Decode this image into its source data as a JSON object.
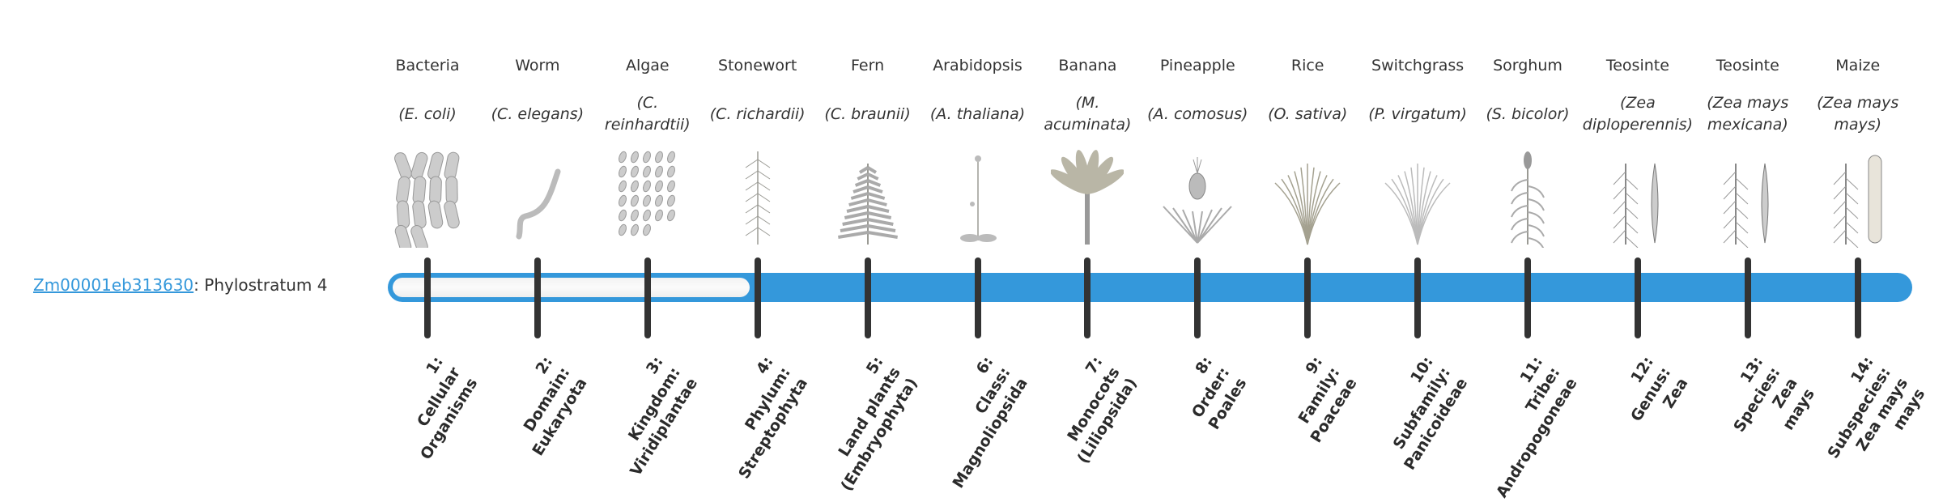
{
  "gene": {
    "id": "Zm00001eb313630",
    "suffix": ": Phylostratum 4",
    "phylostratum": 4
  },
  "colors": {
    "bar": "#3498db",
    "tick": "#333333",
    "link": "#3498db"
  },
  "organisms": [
    {
      "name": "Bacteria",
      "species": "(E. coli)",
      "icon": "bacteria-icon"
    },
    {
      "name": "Worm",
      "species": "(C. elegans)",
      "icon": "worm-icon"
    },
    {
      "name": "Algae",
      "species": "(C. reinhardtii)",
      "icon": "algae-icon"
    },
    {
      "name": "Stonewort",
      "species": "(C. richardii)",
      "icon": "stonewort-icon"
    },
    {
      "name": "Fern",
      "species": "(C. braunii)",
      "icon": "fern-icon"
    },
    {
      "name": "Arabidopsis",
      "species": "(A. thaliana)",
      "icon": "arabidopsis-icon"
    },
    {
      "name": "Banana",
      "species": "(M. acuminata)",
      "icon": "banana-icon"
    },
    {
      "name": "Pineapple",
      "species": "(A. comosus)",
      "icon": "pineapple-icon"
    },
    {
      "name": "Rice",
      "species": "(O. sativa)",
      "icon": "rice-icon"
    },
    {
      "name": "Switchgrass",
      "species": "(P. virgatum)",
      "icon": "switchgrass-icon"
    },
    {
      "name": "Sorghum",
      "species": "(S. bicolor)",
      "icon": "sorghum-icon"
    },
    {
      "name": "Teosinte",
      "species": "(Zea diploperennis)",
      "icon": "teosinte-icon"
    },
    {
      "name": "Teosinte",
      "species": "(Zea mays mexicana)",
      "icon": "teosinte-icon"
    },
    {
      "name": "Maize",
      "species": "(Zea mays mays)",
      "icon": "maize-icon"
    }
  ],
  "strata": [
    {
      "lines": [
        "1:",
        "Cellular",
        "Organisms"
      ]
    },
    {
      "lines": [
        "2:",
        "Domain:",
        "Eukaryota"
      ]
    },
    {
      "lines": [
        "3:",
        "Kingdom:",
        "Viridiplantae"
      ]
    },
    {
      "lines": [
        "4:",
        "Phylum:",
        "Streptophyta"
      ]
    },
    {
      "lines": [
        "5:",
        "Land plants",
        "(Embryophyta)"
      ]
    },
    {
      "lines": [
        "6:",
        "Class:",
        "Magnoliopsida"
      ]
    },
    {
      "lines": [
        "7:",
        "Monocots",
        "(Liliopsida)"
      ]
    },
    {
      "lines": [
        "8:",
        "Order:",
        "Poales"
      ]
    },
    {
      "lines": [
        "9:",
        "Family:",
        "Poaceae"
      ]
    },
    {
      "lines": [
        "10:",
        "Subfamily:",
        "Panicoideae"
      ]
    },
    {
      "lines": [
        "11:",
        "Tribe:",
        "Andropogoneae"
      ]
    },
    {
      "lines": [
        "12:",
        "Genus:",
        "Zea"
      ]
    },
    {
      "lines": [
        "13:",
        "Species:",
        "Zea",
        "mays"
      ]
    },
    {
      "lines": [
        "14:",
        "Subspecies:",
        "Zea mays",
        "mays"
      ]
    }
  ]
}
